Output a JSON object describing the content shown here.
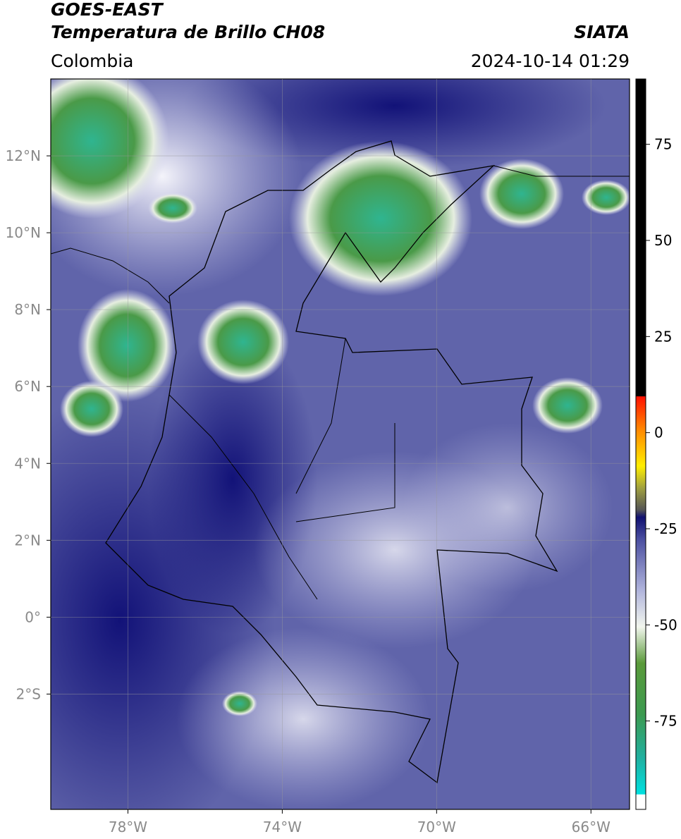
{
  "header": {
    "title": "GOES-EAST",
    "subtitle": "Temperatura de Brillo CH08",
    "source": "SIATA",
    "region": "Colombia",
    "datetime": "2024-10-14 01:29"
  },
  "map": {
    "xlim": [
      -80,
      -65
    ],
    "ylim": [
      -5,
      14
    ],
    "xticks": [
      {
        "value": -78,
        "label": "78°W"
      },
      {
        "value": -74,
        "label": "74°W"
      },
      {
        "value": -70,
        "label": "70°W"
      },
      {
        "value": -66,
        "label": "66°W"
      }
    ],
    "yticks": [
      {
        "value": -2,
        "label": "2°S"
      },
      {
        "value": 0,
        "label": "0°"
      },
      {
        "value": 2,
        "label": "2°N"
      },
      {
        "value": 4,
        "label": "4°N"
      },
      {
        "value": 6,
        "label": "6°N"
      },
      {
        "value": 8,
        "label": "8°N"
      },
      {
        "value": 10,
        "label": "10°N"
      },
      {
        "value": 12,
        "label": "12°N"
      }
    ],
    "grid": true
  },
  "colorbar": {
    "lim": [
      -98,
      92
    ],
    "ticks": [
      -75,
      -50,
      -25,
      0,
      25,
      50,
      75
    ]
  }
}
